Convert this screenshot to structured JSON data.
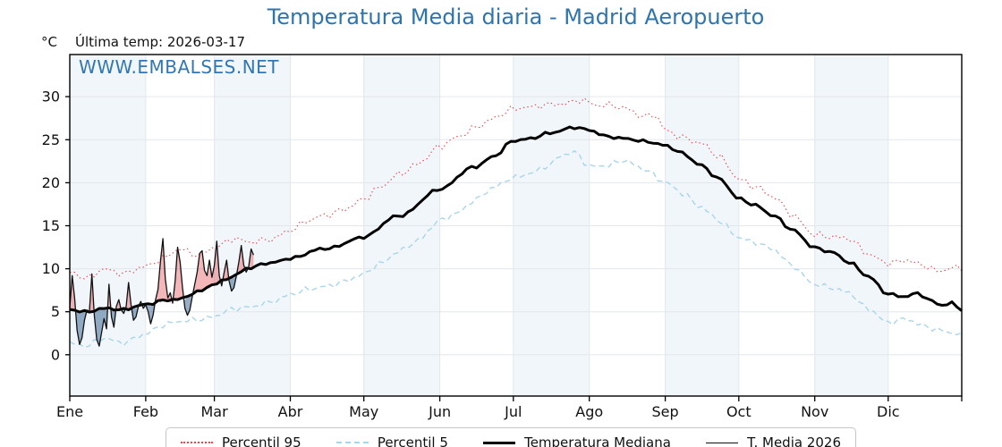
{
  "title": "Temperatura Media diaria - Madrid Aeropuerto",
  "unit": "°C",
  "last_temp_text": "Última temp: 2026-03-17",
  "watermark": "WWW.EMBALSES.NET",
  "colors": {
    "title": "#2e74ae",
    "watermark": "#3277b3",
    "band": "#f1f6fa",
    "grid": "#e3e7ec",
    "axis": "#000000",
    "p95": "#e8474b",
    "p5": "#a9d5e8",
    "median": "#000000",
    "t2026": "#111111",
    "fill_above": "rgba(229,93,100,0.45)",
    "fill_below": "rgba(55,100,145,0.52)"
  },
  "chart_data": {
    "type": "line",
    "title": "Temperatura Media diaria - Madrid Aeropuerto",
    "xlabel": "",
    "ylabel": "°C",
    "ylim": [
      -4.8,
      34.9
    ],
    "y_ticks": [
      0,
      5,
      10,
      15,
      20,
      25,
      30
    ],
    "x_tick_labels": [
      "Ene",
      "Feb",
      "Mar",
      "Abr",
      "May",
      "Jun",
      "Jul",
      "Ago",
      "Sep",
      "Oct",
      "Nov",
      "Dic"
    ],
    "month_days": [
      31,
      28,
      31,
      30,
      31,
      30,
      31,
      31,
      30,
      31,
      30,
      31
    ],
    "grid": true,
    "legend_position": "bottom",
    "series": [
      {
        "name": "Percentil 95",
        "style": "dotted",
        "seed": 7,
        "jitter": 0.5,
        "points": [
          [
            1,
            9.8
          ],
          [
            8,
            8.9
          ],
          [
            15,
            9.7
          ],
          [
            22,
            9.2
          ],
          [
            32,
            10.2
          ],
          [
            39,
            10.9
          ],
          [
            46,
            11.9
          ],
          [
            53,
            11.4
          ],
          [
            60,
            12.4
          ],
          [
            68,
            13.3
          ],
          [
            74,
            12.9
          ],
          [
            82,
            13.5
          ],
          [
            91,
            14.6
          ],
          [
            98,
            15.6
          ],
          [
            105,
            16.4
          ],
          [
            113,
            17.3
          ],
          [
            121,
            18.3
          ],
          [
            128,
            19.6
          ],
          [
            135,
            21.2
          ],
          [
            143,
            22.4
          ],
          [
            152,
            24.1
          ],
          [
            160,
            25.3
          ],
          [
            166,
            26.4
          ],
          [
            174,
            27.3
          ],
          [
            182,
            28.2
          ],
          [
            189,
            28.6
          ],
          [
            196,
            29.0
          ],
          [
            203,
            28.9
          ],
          [
            210,
            29.3
          ],
          [
            216,
            28.9
          ],
          [
            222,
            29.1
          ],
          [
            227,
            28.7
          ],
          [
            235,
            27.6
          ],
          [
            240,
            27.9
          ],
          [
            244,
            26.3
          ],
          [
            251,
            25.6
          ],
          [
            258,
            24.8
          ],
          [
            266,
            23.2
          ],
          [
            274,
            20.8
          ],
          [
            281,
            19.8
          ],
          [
            288,
            18.4
          ],
          [
            296,
            16.3
          ],
          [
            305,
            14.1
          ],
          [
            312,
            13.6
          ],
          [
            319,
            13.2
          ],
          [
            327,
            11.6
          ],
          [
            335,
            10.5
          ],
          [
            342,
            10.6
          ],
          [
            349,
            10.1
          ],
          [
            356,
            9.6
          ],
          [
            361,
            10.1
          ],
          [
            365,
            9.9
          ]
        ]
      },
      {
        "name": "Percentil 5",
        "style": "dashed",
        "seed": 13,
        "jitter": 0.45,
        "points": [
          [
            1,
            1.5
          ],
          [
            8,
            1.0
          ],
          [
            15,
            1.7
          ],
          [
            22,
            1.3
          ],
          [
            32,
            2.3
          ],
          [
            39,
            3.1
          ],
          [
            46,
            3.6
          ],
          [
            53,
            4.0
          ],
          [
            60,
            4.3
          ],
          [
            67,
            5.0
          ],
          [
            74,
            5.4
          ],
          [
            82,
            6.2
          ],
          [
            91,
            7.0
          ],
          [
            98,
            7.6
          ],
          [
            105,
            8.2
          ],
          [
            113,
            8.8
          ],
          [
            121,
            9.5
          ],
          [
            128,
            10.8
          ],
          [
            135,
            12.3
          ],
          [
            143,
            13.4
          ],
          [
            152,
            15.5
          ],
          [
            159,
            16.5
          ],
          [
            166,
            18.0
          ],
          [
            174,
            19.2
          ],
          [
            182,
            20.3
          ],
          [
            189,
            21.0
          ],
          [
            196,
            21.8
          ],
          [
            202,
            22.9
          ],
          [
            207,
            23.2
          ],
          [
            213,
            21.8
          ],
          [
            220,
            22.0
          ],
          [
            227,
            22.5
          ],
          [
            235,
            21.5
          ],
          [
            244,
            20.3
          ],
          [
            251,
            19.0
          ],
          [
            258,
            17.3
          ],
          [
            266,
            15.8
          ],
          [
            274,
            14.0
          ],
          [
            281,
            13.2
          ],
          [
            288,
            12.3
          ],
          [
            296,
            10.5
          ],
          [
            305,
            8.3
          ],
          [
            312,
            7.6
          ],
          [
            319,
            7.0
          ],
          [
            327,
            5.3
          ],
          [
            335,
            3.5
          ],
          [
            342,
            3.8
          ],
          [
            349,
            3.2
          ],
          [
            356,
            2.8
          ],
          [
            361,
            2.4
          ],
          [
            365,
            2.0
          ]
        ]
      },
      {
        "name": "Temperatura Mediana",
        "style": "solid-thick",
        "seed": 3,
        "jitter": 0.22,
        "points": [
          [
            1,
            5.3
          ],
          [
            8,
            5.0
          ],
          [
            15,
            5.3
          ],
          [
            22,
            5.1
          ],
          [
            32,
            5.8
          ],
          [
            39,
            6.2
          ],
          [
            46,
            6.3
          ],
          [
            53,
            7.2
          ],
          [
            60,
            8.2
          ],
          [
            67,
            9.0
          ],
          [
            74,
            10.0
          ],
          [
            82,
            10.7
          ],
          [
            91,
            11.3
          ],
          [
            105,
            12.4
          ],
          [
            121,
            13.8
          ],
          [
            135,
            16.2
          ],
          [
            152,
            19.2
          ],
          [
            166,
            21.8
          ],
          [
            174,
            23.0
          ],
          [
            182,
            24.7
          ],
          [
            189,
            25.0
          ],
          [
            196,
            25.7
          ],
          [
            207,
            26.3
          ],
          [
            213,
            26.0
          ],
          [
            220,
            25.4
          ],
          [
            227,
            25.2
          ],
          [
            235,
            24.8
          ],
          [
            244,
            24.4
          ],
          [
            251,
            23.6
          ],
          [
            258,
            22.2
          ],
          [
            266,
            20.5
          ],
          [
            274,
            18.3
          ],
          [
            281,
            17.5
          ],
          [
            288,
            16.2
          ],
          [
            296,
            14.5
          ],
          [
            305,
            12.5
          ],
          [
            312,
            11.9
          ],
          [
            319,
            10.6
          ],
          [
            327,
            9.0
          ],
          [
            335,
            7.0
          ],
          [
            342,
            6.6
          ],
          [
            347,
            7.0
          ],
          [
            352,
            6.2
          ],
          [
            357,
            5.7
          ],
          [
            361,
            6.0
          ],
          [
            365,
            5.2
          ]
        ]
      },
      {
        "name": "T. Media 2026",
        "style": "solid-thin",
        "start_day": 1,
        "end_date": "2026-03-17",
        "daily_values": [
          5.5,
          9.2,
          6.5,
          2.8,
          1.2,
          2.0,
          4.0,
          5.2,
          5.0,
          9.4,
          4.6,
          1.8,
          1.0,
          2.6,
          4.2,
          3.0,
          8.2,
          4.4,
          3.2,
          5.6,
          6.4,
          5.2,
          4.8,
          5.6,
          8.4,
          5.8,
          4.0,
          4.4,
          5.6,
          6.2,
          5.4,
          5.8,
          5.0,
          3.6,
          4.6,
          6.4,
          7.6,
          10.8,
          13.5,
          8.8,
          6.6,
          7.2,
          6.0,
          8.6,
          12.5,
          10.8,
          7.8,
          5.4,
          4.6,
          5.2,
          6.8,
          8.2,
          9.6,
          11.8,
          12.1,
          9.8,
          9.2,
          11.0,
          9.0,
          10.4,
          13.2,
          9.2,
          8.0,
          9.6,
          11.0,
          8.6,
          7.4,
          7.8,
          9.2,
          10.8,
          12.7,
          10.4,
          9.6,
          10.2,
          12.3,
          11.6
        ]
      }
    ]
  }
}
